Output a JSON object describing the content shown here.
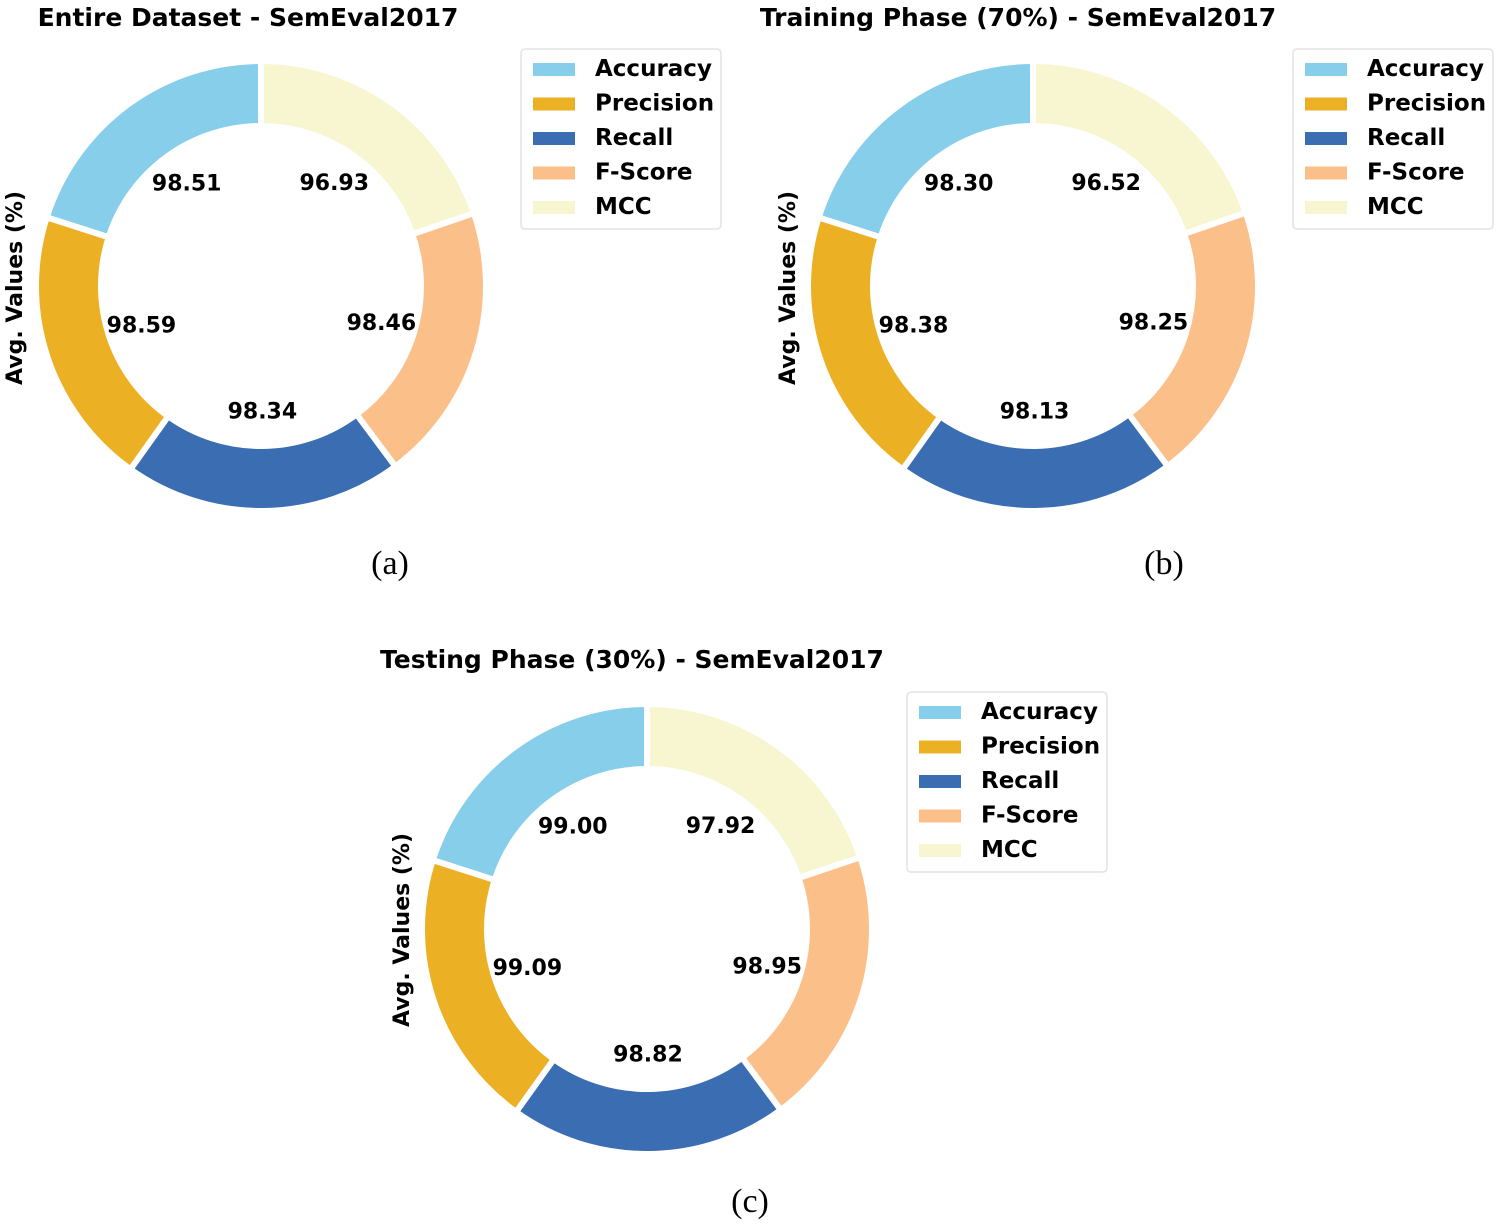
{
  "colors": {
    "Accuracy": "#87ceeb",
    "Precision": "#ecb025",
    "Recall": "#3a6db1",
    "F-Score": "#fbbf8a",
    "MCC": "#f8f6d0"
  },
  "chart_data": [
    {
      "type": "donut",
      "title": "Entire Dataset - SemEval2017",
      "ylabel": "Avg. Values (%)",
      "caption": "(a)",
      "categories": [
        "Accuracy",
        "Precision",
        "Recall",
        "F-Score",
        "MCC"
      ],
      "values": [
        98.51,
        98.59,
        98.34,
        98.46,
        96.93
      ],
      "value_labels": [
        "98.51",
        "98.59",
        "98.34",
        "98.46",
        "96.93"
      ],
      "legend": "right"
    },
    {
      "type": "donut",
      "title": "Training Phase (70%) - SemEval2017",
      "ylabel": "Avg. Values (%)",
      "caption": "(b)",
      "categories": [
        "Accuracy",
        "Precision",
        "Recall",
        "F-Score",
        "MCC"
      ],
      "values": [
        98.3,
        98.38,
        98.13,
        98.25,
        96.52
      ],
      "value_labels": [
        "98.30",
        "98.38",
        "98.13",
        "98.25",
        "96.52"
      ],
      "legend": "right"
    },
    {
      "type": "donut",
      "title": "Testing Phase (30%) - SemEval2017",
      "ylabel": "Avg. Values (%)",
      "caption": "(c)",
      "categories": [
        "Accuracy",
        "Precision",
        "Recall",
        "F-Score",
        "MCC"
      ],
      "values": [
        99.0,
        99.09,
        98.82,
        98.95,
        97.92
      ],
      "value_labels": [
        "99.00",
        "99.09",
        "98.82",
        "98.95",
        "97.92"
      ],
      "legend": "right"
    }
  ]
}
